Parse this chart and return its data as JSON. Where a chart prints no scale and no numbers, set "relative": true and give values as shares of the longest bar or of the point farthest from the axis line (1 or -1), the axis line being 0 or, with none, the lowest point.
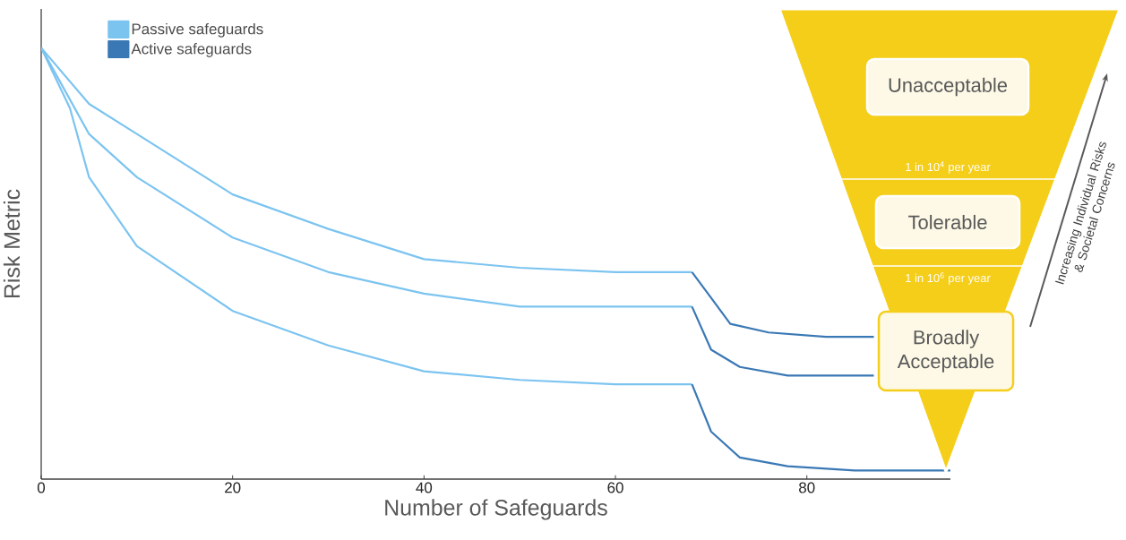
{
  "chart_data": [
    {
      "type": "line",
      "xlabel": "Number of Safeguards",
      "ylabel": "Risk Metric",
      "relative": true,
      "xlim": [
        0,
        95
      ],
      "xticks": [
        0,
        20,
        40,
        60,
        80
      ],
      "legend": "top left",
      "series": [
        {
          "name": "Passive safeguards",
          "color": "#7cc4f0",
          "x": [
            0,
            3,
            5,
            10,
            20,
            30,
            40,
            50,
            60,
            68
          ],
          "values": [
            1.0,
            0.88,
            0.8,
            0.7,
            0.56,
            0.48,
            0.43,
            0.4,
            0.4,
            0.4
          ]
        },
        {
          "color": "#7cc4f0",
          "x": [
            0,
            5,
            10,
            20,
            30,
            40,
            50,
            60,
            68
          ],
          "values": [
            1.0,
            0.87,
            0.8,
            0.66,
            0.58,
            0.51,
            0.49,
            0.48,
            0.48
          ]
        },
        {
          "color": "#7cc4f0",
          "x": [
            0,
            3,
            5,
            10,
            20,
            30,
            40,
            50,
            60,
            68
          ],
          "values": [
            1.0,
            0.86,
            0.7,
            0.54,
            0.39,
            0.31,
            0.25,
            0.23,
            0.22,
            0.22
          ]
        },
        {
          "name": "Active safeguards",
          "color": "#3a78b5",
          "x": [
            68,
            70,
            73,
            78,
            82,
            87
          ],
          "values": [
            0.4,
            0.3,
            0.26,
            0.24,
            0.24,
            0.24
          ]
        },
        {
          "color": "#3a78b5",
          "x": [
            68,
            70,
            72,
            76,
            82,
            87
          ],
          "values": [
            0.48,
            0.42,
            0.36,
            0.34,
            0.33,
            0.33
          ]
        },
        {
          "color": "#3a78b5",
          "x": [
            68,
            70,
            73,
            78,
            85,
            95
          ],
          "values": [
            0.22,
            0.11,
            0.05,
            0.03,
            0.02,
            0.02
          ]
        }
      ]
    },
    {
      "type": "other",
      "annotations": [
        "Unacceptable",
        "1 in 10$^{4}$ per year",
        "Tolerable",
        "1 in 10$^{6}$ per year",
        "Broadly Acceptable",
        "Increasing Individual Risks & Societal Concerns"
      ]
    }
  ]
}
